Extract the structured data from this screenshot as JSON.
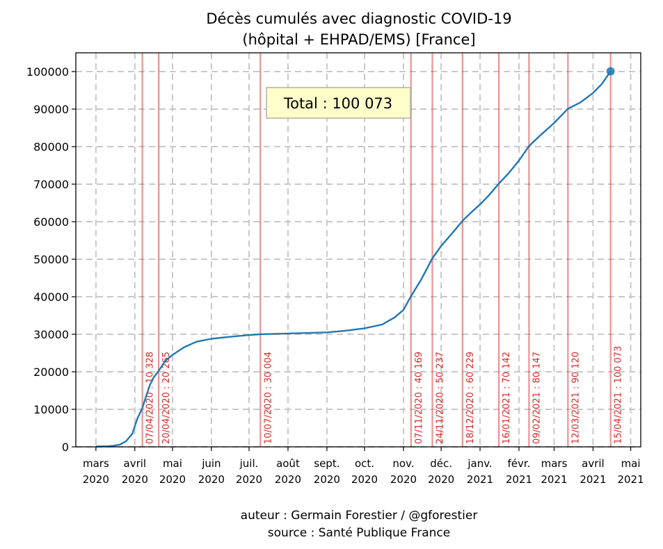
{
  "chart_data": {
    "type": "line",
    "title": [
      "Décès cumulés avec diagnostic COVID-19",
      "(hôpital + EHPAD/EMS) [France]"
    ],
    "xlabel": "",
    "ylabel": "",
    "xlim": [
      "2020-02-14",
      "2021-05-09"
    ],
    "ylim": [
      0,
      105000
    ],
    "y_ticks": [
      0,
      10000,
      20000,
      30000,
      40000,
      50000,
      60000,
      70000,
      80000,
      90000,
      100000
    ],
    "x_ticks": [
      {
        "date": "2020-03-01",
        "line1": "mars",
        "line2": "2020"
      },
      {
        "date": "2020-04-01",
        "line1": "avril",
        "line2": "2020"
      },
      {
        "date": "2020-05-01",
        "line1": "mai",
        "line2": "2020"
      },
      {
        "date": "2020-06-01",
        "line1": "juin",
        "line2": "2020"
      },
      {
        "date": "2020-07-01",
        "line1": "juil.",
        "line2": "2020"
      },
      {
        "date": "2020-08-01",
        "line1": "août",
        "line2": "2020"
      },
      {
        "date": "2020-09-01",
        "line1": "sept.",
        "line2": "2020"
      },
      {
        "date": "2020-10-01",
        "line1": "oct.",
        "line2": "2020"
      },
      {
        "date": "2020-11-01",
        "line1": "nov.",
        "line2": "2020"
      },
      {
        "date": "2020-12-01",
        "line1": "déc.",
        "line2": "2020"
      },
      {
        "date": "2021-01-01",
        "line1": "janv.",
        "line2": "2021"
      },
      {
        "date": "2021-02-01",
        "line1": "févr.",
        "line2": "2021"
      },
      {
        "date": "2021-03-01",
        "line1": "mars",
        "line2": "2021"
      },
      {
        "date": "2021-04-01",
        "line1": "avril",
        "line2": "2021"
      },
      {
        "date": "2021-05-01",
        "line1": "mai",
        "line2": "2021"
      }
    ],
    "grid": true,
    "series": [
      {
        "color": "#1f77b4",
        "x": [
          "2020-03-01",
          "2020-03-10",
          "2020-03-15",
          "2020-03-20",
          "2020-03-25",
          "2020-03-30",
          "2020-04-03",
          "2020-04-07",
          "2020-04-10",
          "2020-04-13",
          "2020-04-16",
          "2020-04-20",
          "2020-04-25",
          "2020-05-01",
          "2020-05-10",
          "2020-05-20",
          "2020-06-01",
          "2020-06-15",
          "2020-07-01",
          "2020-07-10",
          "2020-08-01",
          "2020-09-01",
          "2020-09-15",
          "2020-10-01",
          "2020-10-15",
          "2020-10-25",
          "2020-11-01",
          "2020-11-07",
          "2020-11-15",
          "2020-11-24",
          "2020-12-01",
          "2020-12-10",
          "2020-12-18",
          "2020-12-25",
          "2021-01-01",
          "2021-01-08",
          "2021-01-16",
          "2021-01-24",
          "2021-02-01",
          "2021-02-09",
          "2021-02-18",
          "2021-03-01",
          "2021-03-12",
          "2021-03-22",
          "2021-04-01",
          "2021-04-08",
          "2021-04-15"
        ],
        "y": [
          100,
          150,
          300,
          600,
          1500,
          3500,
          7500,
          10328,
          13500,
          16500,
          18500,
          20265,
          22800,
          24500,
          26500,
          28000,
          28800,
          29300,
          29800,
          30004,
          30200,
          30500,
          30900,
          31600,
          32600,
          34500,
          36500,
          40169,
          44500,
          50237,
          53500,
          57000,
          60229,
          62500,
          64600,
          67000,
          70142,
          73000,
          76300,
          80147,
          83000,
          86300,
          90120,
          91800,
          94300,
          96700,
          100073
        ]
      }
    ],
    "markers": [
      {
        "date": "2020-04-07",
        "label": "07/04/2020 : 10 328"
      },
      {
        "date": "2020-04-20",
        "label": "20/04/2020 : 20 265"
      },
      {
        "date": "2020-07-10",
        "label": "10/07/2020 : 30 004"
      },
      {
        "date": "2020-11-07",
        "label": "07/11/2020 : 40 169"
      },
      {
        "date": "2020-11-24",
        "label": "24/11/2020 : 50 237"
      },
      {
        "date": "2020-12-18",
        "label": "18/12/2020 : 60 229"
      },
      {
        "date": "2021-01-16",
        "label": "16/01/2021 : 70 142"
      },
      {
        "date": "2021-02-09",
        "label": "09/02/2021 : 80 147"
      },
      {
        "date": "2021-03-12",
        "label": "12/03/2021 : 90 120"
      },
      {
        "date": "2021-04-15",
        "label": "15/04/2021 : 100 073"
      }
    ],
    "marker_color": "#d62728",
    "endpoint": {
      "date": "2021-04-15",
      "value": 100073
    },
    "annotation": "Total : 100 073"
  },
  "footer": {
    "author": "auteur : Germain Forestier / @gforestier",
    "source": "source : Santé Publique France"
  }
}
